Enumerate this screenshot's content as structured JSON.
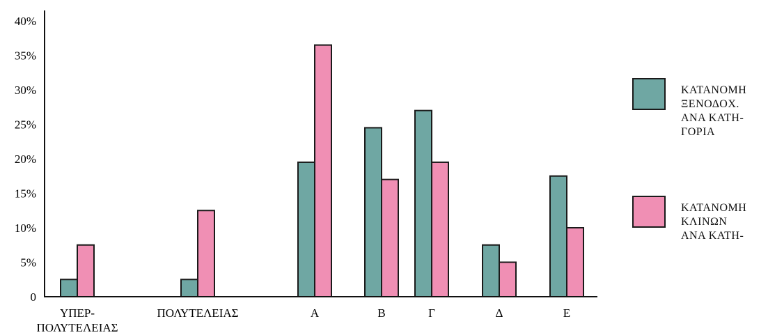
{
  "chart_data": {
    "type": "bar",
    "categories": [
      "ΥΠΕΡ-\nΠΟΛΥΤΕΛΕΙΑΣ",
      "ΠΟΛΥΤΕΛΕΙΑΣ",
      "Α",
      "Β",
      "Γ",
      "Δ",
      "Ε"
    ],
    "series": [
      {
        "name": "ΚΑΤΑΝΟΜΗ ΞΕΝΟΔΟΧ. ΑΝΑ ΚΑΤΗ-ΓΟΡΙΑ",
        "color": "#6fa7a3",
        "values": [
          2.5,
          2.5,
          19.5,
          24.5,
          27,
          7.5,
          17.5
        ]
      },
      {
        "name": "ΚΑΤΑΝΟΜΗ ΚΛΙΝΩΝ ΑΝΑ ΚΑΤΗ-",
        "color": "#f08fb4",
        "values": [
          7.5,
          12.5,
          36.5,
          17,
          19.5,
          5,
          10
        ]
      }
    ],
    "y_ticks": [
      "0",
      "5%",
      "10%",
      "15%",
      "20%",
      "25%",
      "30%",
      "35%",
      "40%"
    ],
    "ylim": [
      0,
      40
    ],
    "title": "",
    "xlabel": "",
    "ylabel": "",
    "legend_placement": "right",
    "grid": false
  },
  "legend": {
    "items": [
      {
        "lines": [
          "ΚΑΤΑΝΟΜΗ",
          "ΞΕΝΟΔΟΧ.",
          "ΑΝΑ ΚΑΤΗ-",
          "ΓΟΡΙΑ"
        ],
        "color": "#6fa7a3"
      },
      {
        "lines": [
          "ΚΑΤΑΝΟΜΗ",
          "ΚΛΙΝΩΝ",
          "ΑΝΑ ΚΑΤΗ-"
        ],
        "color": "#f08fb4"
      }
    ]
  }
}
